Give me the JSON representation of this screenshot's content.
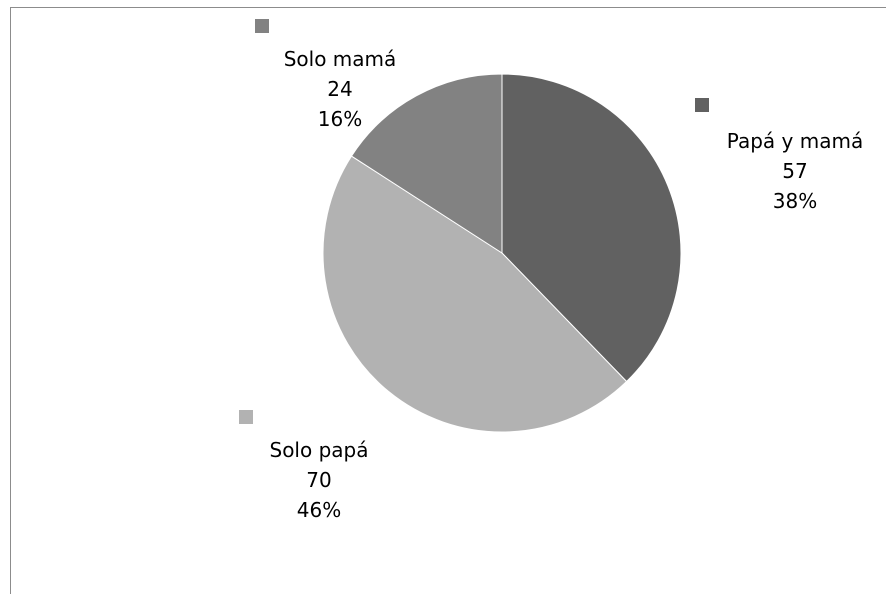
{
  "chart_data": {
    "type": "pie",
    "title": "",
    "start_angle_deg": 0,
    "direction": "clockwise",
    "slices": [
      {
        "name": "Papá y mamá",
        "value": 57,
        "percent": "38%",
        "color": "#616161"
      },
      {
        "name": "Solo papá",
        "value": 70,
        "percent": "46%",
        "color": "#b2b2b2"
      },
      {
        "name": "Solo mamá",
        "value": 24,
        "percent": "16%",
        "color": "#828282"
      }
    ],
    "legend": "data labels with color keys outside the pie"
  }
}
